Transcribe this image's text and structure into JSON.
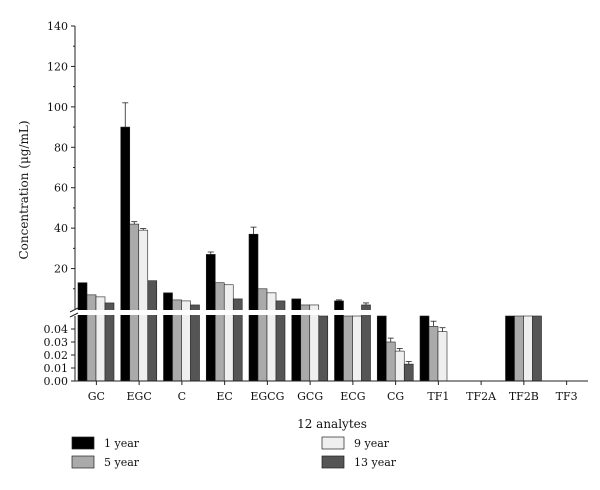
{
  "chart_data": {
    "type": "bar",
    "title": "",
    "xlabel": "12 analytes",
    "ylabel": "Concentration (μg/mL)",
    "categories": [
      "GC",
      "EGC",
      "C",
      "EC",
      "EGCG",
      "GCG",
      "ECG",
      "CG",
      "TF1",
      "TF2A",
      "TF2B",
      "TF3"
    ],
    "axis_break": true,
    "lower_axis": {
      "range": [
        0,
        0.05
      ],
      "ticks": [
        "0.00",
        "0.01",
        "0.02",
        "0.03",
        "0.04"
      ]
    },
    "upper_axis": {
      "range": [
        0,
        140
      ],
      "ticks": [
        "20",
        "40",
        "60",
        "80",
        "100",
        "120",
        "140"
      ]
    },
    "series": [
      {
        "name": "1 year",
        "color": "#000000",
        "values": [
          13,
          90,
          8,
          27,
          37,
          5,
          4,
          0.05,
          0.05,
          0,
          0.05,
          0
        ],
        "errors": [
          0,
          12,
          0,
          1.2,
          3.5,
          0,
          0.5,
          0,
          0,
          0,
          0,
          0
        ]
      },
      {
        "name": "5 year",
        "color": "#aaaaaa",
        "values": [
          7,
          42,
          4.5,
          13,
          10,
          2,
          0.05,
          0.03,
          0.042,
          0,
          0.05,
          0
        ],
        "errors": [
          0,
          1.2,
          0,
          0,
          0,
          0,
          0,
          0.003,
          0.004,
          0,
          0,
          0
        ]
      },
      {
        "name": "9 year",
        "color": "#efefef",
        "values": [
          6,
          39,
          4,
          12,
          8,
          2,
          0.05,
          0.023,
          0.038,
          0,
          0.05,
          0
        ],
        "errors": [
          0,
          0.8,
          0,
          0,
          0,
          0,
          0,
          0.002,
          0.003,
          0,
          0,
          0
        ]
      },
      {
        "name": "13 year",
        "color": "#555555",
        "values": [
          3,
          14,
          2,
          5,
          4,
          0.05,
          2,
          0.013,
          0,
          0,
          0.05,
          0
        ],
        "errors": [
          0,
          0,
          0,
          0,
          0,
          0,
          1,
          0.002,
          0,
          0,
          0,
          0
        ]
      }
    ],
    "legend": {
      "placement": "bottom",
      "columns": 2
    }
  }
}
